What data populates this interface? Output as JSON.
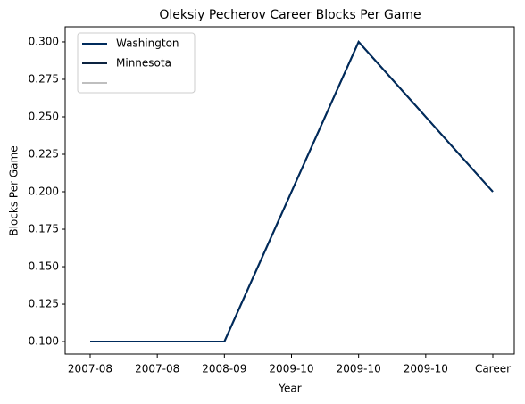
{
  "chart_data": {
    "type": "line",
    "title": "Oleksiy Pecherov Career Blocks Per Game",
    "xlabel": "Year",
    "ylabel": "Blocks Per Game",
    "categories": [
      "2007-08",
      "2007-08",
      "2008-09",
      "2009-10",
      "2009-10",
      "2009-10",
      "Career"
    ],
    "series": [
      {
        "name": "Washington",
        "color": "#002b5c",
        "values": [
          0.1,
          0.1,
          0.1,
          0.2,
          0.3,
          0.25,
          0.2
        ]
      },
      {
        "name": "Minnesota",
        "color": "#0c2340",
        "values": [
          0.1,
          0.1,
          0.1,
          0.2,
          0.3,
          0.25,
          0.2
        ]
      },
      {
        "name": null,
        "color": "#bfbfbf",
        "values": [
          0.1,
          0.1,
          0.1,
          0.2,
          0.3,
          0.25,
          0.2
        ]
      }
    ],
    "ylim": [
      0.0917,
      0.3101
    ],
    "yticks": [
      {
        "value": 0.1,
        "label": "0.100"
      },
      {
        "value": 0.125,
        "label": "0.125"
      },
      {
        "value": 0.15,
        "label": "0.150"
      },
      {
        "value": 0.175,
        "label": "0.175"
      },
      {
        "value": 0.2,
        "label": "0.200"
      },
      {
        "value": 0.225,
        "label": "0.225"
      },
      {
        "value": 0.25,
        "label": "0.250"
      },
      {
        "value": 0.275,
        "label": "0.275"
      },
      {
        "value": 0.3,
        "label": "0.300"
      }
    ],
    "legend_position": "upper left"
  }
}
